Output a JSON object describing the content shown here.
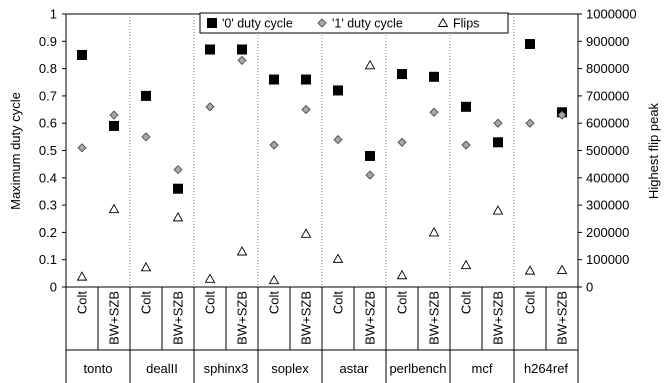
{
  "chart_data": {
    "type": "scatter",
    "ylabel": "Maximum duty cycle",
    "y2label": "Highest flip peak",
    "ylim": [
      0,
      1
    ],
    "y2lim": [
      0,
      1000000
    ],
    "yticks": [
      "0",
      "0.1",
      "0.2",
      "0.3",
      "0.4",
      "0.5",
      "0.6",
      "0.7",
      "0.8",
      "0.9",
      "1"
    ],
    "y2ticks": [
      "0",
      "100000",
      "200000",
      "300000",
      "400000",
      "500000",
      "600000",
      "700000",
      "800000",
      "900000",
      "1000000"
    ],
    "grid": "vertical dotted lines between benchmark groups",
    "legend_position": "top",
    "groups": [
      "tonto",
      "dealII",
      "sphinx3",
      "soplex",
      "astar",
      "perlbench",
      "mcf",
      "h264ref"
    ],
    "subcategories": [
      "Colt",
      "BW+SZB"
    ],
    "series": [
      {
        "name": "'0' duty cycle",
        "marker": "square",
        "axis": "left",
        "values": [
          0.85,
          0.59,
          0.7,
          0.36,
          0.87,
          0.87,
          0.76,
          0.76,
          0.72,
          0.48,
          0.78,
          0.77,
          0.66,
          0.53,
          0.89,
          0.64
        ]
      },
      {
        "name": "'1' duty cycle",
        "marker": "diamond",
        "axis": "left",
        "values": [
          0.51,
          0.63,
          0.55,
          0.43,
          0.66,
          0.83,
          0.52,
          0.65,
          0.54,
          0.41,
          0.53,
          0.64,
          0.52,
          0.6,
          0.6,
          0.63
        ]
      },
      {
        "name": "Flips",
        "marker": "triangle",
        "axis": "right",
        "values": [
          38000,
          285000,
          72000,
          255000,
          30000,
          130000,
          25000,
          195000,
          103000,
          812000,
          43000,
          200000,
          80000,
          280000,
          60000,
          62000
        ]
      }
    ]
  }
}
